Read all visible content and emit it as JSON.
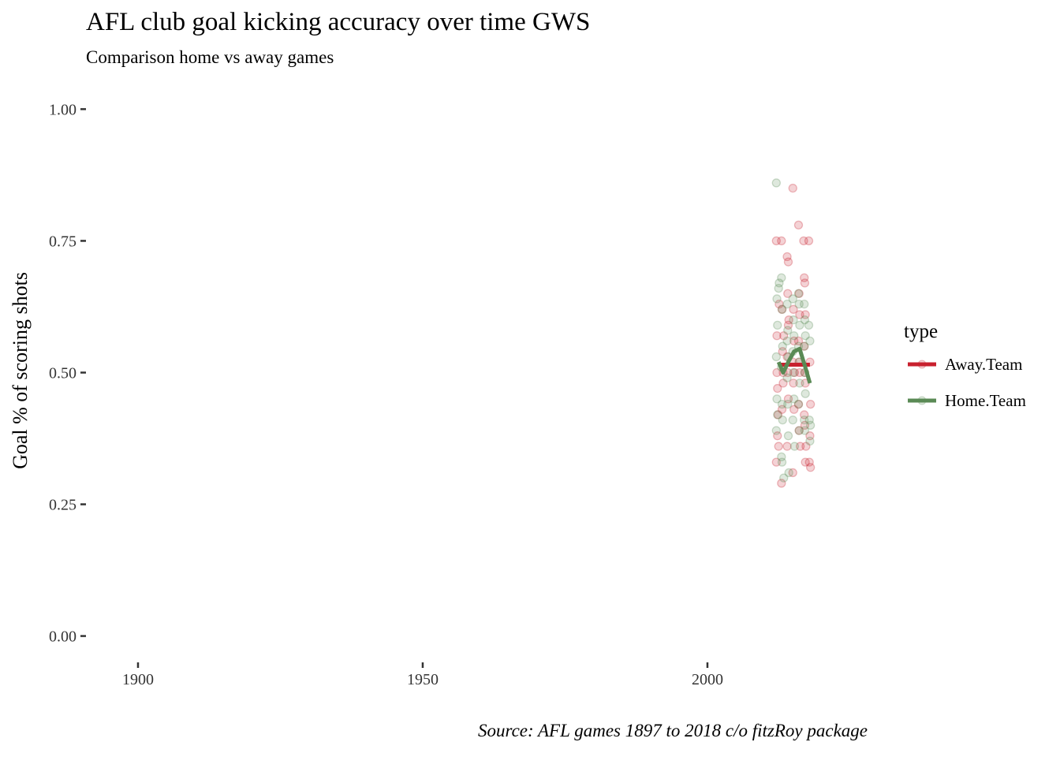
{
  "chart_data": {
    "type": "scatter",
    "title": "AFL club goal kicking accuracy over time GWS",
    "subtitle": "Comparison home vs away games",
    "xlabel": "",
    "ylabel": "Goal % of scoring shots",
    "caption": "Source: AFL games 1897 to 2018 c/o fitzRoy package",
    "xlim": [
      1891,
      2032
    ],
    "ylim": [
      -0.05,
      1.05
    ],
    "x_ticks": [
      1900,
      1950,
      2000
    ],
    "x_tick_labels": [
      "1900",
      "1950",
      "2000"
    ],
    "y_ticks": [
      0,
      0.25,
      0.5,
      0.75,
      1.0
    ],
    "y_tick_labels": [
      "0.00",
      "0.25",
      "0.50",
      "0.75",
      "1.00"
    ],
    "grid": false,
    "legend": {
      "title": "type",
      "placement": "right",
      "entries": [
        "Away.Team",
        "Home.Team"
      ]
    },
    "series": [
      {
        "name": "Away.Team",
        "color": "#c8202e",
        "points": [
          [
            2012.1,
            0.75
          ],
          [
            2012.2,
            0.57
          ],
          [
            2012.2,
            0.5
          ],
          [
            2012.3,
            0.47
          ],
          [
            2012.3,
            0.38
          ],
          [
            2012.1,
            0.33
          ],
          [
            2012.4,
            0.42
          ],
          [
            2012.5,
            0.36
          ],
          [
            2012.6,
            0.63
          ],
          [
            2013.0,
            0.75
          ],
          [
            2013.1,
            0.62
          ],
          [
            2013.2,
            0.54
          ],
          [
            2013.3,
            0.5
          ],
          [
            2013.1,
            0.43
          ],
          [
            2013.0,
            0.29
          ],
          [
            2013.4,
            0.57
          ],
          [
            2013.3,
            0.48
          ],
          [
            2014.0,
            0.72
          ],
          [
            2014.1,
            0.65
          ],
          [
            2014.2,
            0.59
          ],
          [
            2014.0,
            0.53
          ],
          [
            2014.1,
            0.5
          ],
          [
            2014.2,
            0.45
          ],
          [
            2014.0,
            0.36
          ],
          [
            2014.3,
            0.6
          ],
          [
            2014.2,
            0.71
          ],
          [
            2015.0,
            0.85
          ],
          [
            2015.1,
            0.62
          ],
          [
            2015.2,
            0.56
          ],
          [
            2015.0,
            0.52
          ],
          [
            2015.1,
            0.48
          ],
          [
            2015.2,
            0.43
          ],
          [
            2015.0,
            0.31
          ],
          [
            2015.3,
            0.5
          ],
          [
            2016.0,
            0.78
          ],
          [
            2016.1,
            0.65
          ],
          [
            2016.2,
            0.61
          ],
          [
            2016.0,
            0.56
          ],
          [
            2016.1,
            0.52
          ],
          [
            2016.2,
            0.5
          ],
          [
            2016.0,
            0.44
          ],
          [
            2016.1,
            0.39
          ],
          [
            2016.3,
            0.36
          ],
          [
            2017.0,
            0.68
          ],
          [
            2017.1,
            0.67
          ],
          [
            2017.2,
            0.61
          ],
          [
            2017.0,
            0.55
          ],
          [
            2017.1,
            0.5
          ],
          [
            2017.2,
            0.48
          ],
          [
            2017.0,
            0.42
          ],
          [
            2017.1,
            0.4
          ],
          [
            2017.2,
            0.33
          ],
          [
            2017.3,
            0.36
          ],
          [
            2017.8,
            0.75
          ],
          [
            2018.0,
            0.52
          ],
          [
            2018.1,
            0.44
          ],
          [
            2018.0,
            0.38
          ],
          [
            2017.9,
            0.33
          ],
          [
            2018.1,
            0.32
          ],
          [
            2016.9,
            0.75
          ]
        ],
        "line": [
          [
            2012.5,
            0.515
          ],
          [
            2018.0,
            0.515
          ]
        ]
      },
      {
        "name": "Home.Team",
        "color": "#5a8a55",
        "points": [
          [
            2012.1,
            0.86
          ],
          [
            2012.2,
            0.64
          ],
          [
            2012.3,
            0.59
          ],
          [
            2012.1,
            0.53
          ],
          [
            2012.2,
            0.45
          ],
          [
            2012.3,
            0.42
          ],
          [
            2012.1,
            0.39
          ],
          [
            2012.6,
            0.67
          ],
          [
            2012.5,
            0.66
          ],
          [
            2013.0,
            0.68
          ],
          [
            2013.1,
            0.62
          ],
          [
            2013.2,
            0.55
          ],
          [
            2013.0,
            0.51
          ],
          [
            2013.1,
            0.44
          ],
          [
            2013.2,
            0.41
          ],
          [
            2013.0,
            0.34
          ],
          [
            2013.1,
            0.33
          ],
          [
            2013.4,
            0.3
          ],
          [
            2014.0,
            0.63
          ],
          [
            2014.1,
            0.58
          ],
          [
            2014.2,
            0.53
          ],
          [
            2014.0,
            0.49
          ],
          [
            2014.1,
            0.44
          ],
          [
            2014.2,
            0.38
          ],
          [
            2014.3,
            0.31
          ],
          [
            2014.0,
            0.56
          ],
          [
            2015.0,
            0.64
          ],
          [
            2015.1,
            0.6
          ],
          [
            2015.2,
            0.57
          ],
          [
            2015.0,
            0.54
          ],
          [
            2015.1,
            0.5
          ],
          [
            2015.2,
            0.45
          ],
          [
            2015.0,
            0.41
          ],
          [
            2015.3,
            0.36
          ],
          [
            2016.0,
            0.65
          ],
          [
            2016.1,
            0.63
          ],
          [
            2016.2,
            0.59
          ],
          [
            2016.0,
            0.55
          ],
          [
            2016.1,
            0.52
          ],
          [
            2016.2,
            0.48
          ],
          [
            2016.0,
            0.44
          ],
          [
            2016.1,
            0.39
          ],
          [
            2017.0,
            0.63
          ],
          [
            2017.1,
            0.6
          ],
          [
            2017.2,
            0.57
          ],
          [
            2017.0,
            0.55
          ],
          [
            2017.1,
            0.5
          ],
          [
            2017.2,
            0.46
          ],
          [
            2017.0,
            0.41
          ],
          [
            2017.1,
            0.39
          ],
          [
            2017.8,
            0.59
          ],
          [
            2018.0,
            0.56
          ],
          [
            2017.9,
            0.41
          ],
          [
            2018.1,
            0.4
          ],
          [
            2018.0,
            0.37
          ]
        ],
        "line": [
          [
            2012.5,
            0.52
          ],
          [
            2013.3,
            0.5
          ],
          [
            2014.2,
            0.52
          ],
          [
            2015.2,
            0.54
          ],
          [
            2016.2,
            0.545
          ],
          [
            2017.2,
            0.51
          ],
          [
            2018.0,
            0.48
          ]
        ]
      }
    ]
  }
}
